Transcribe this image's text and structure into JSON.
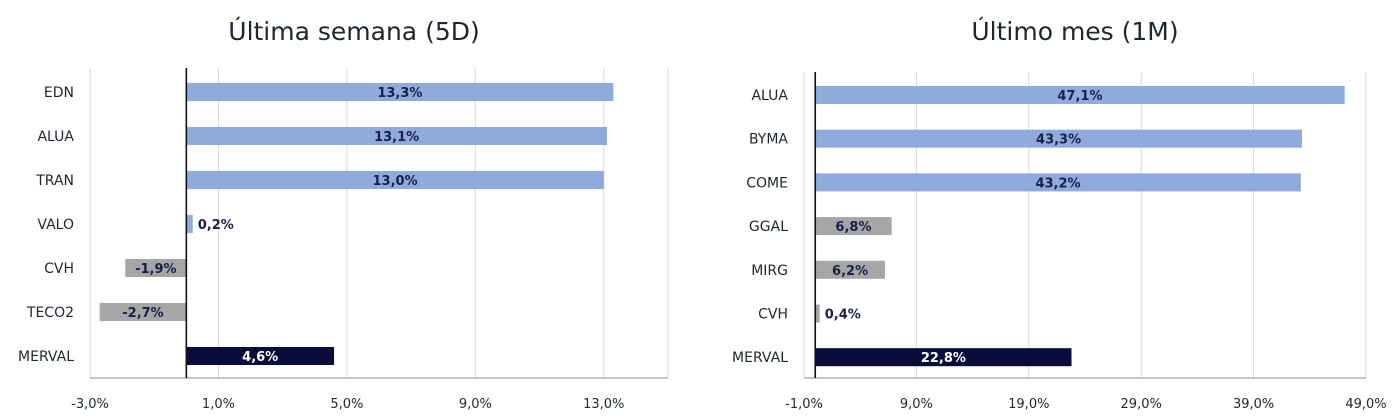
{
  "chart_data": [
    {
      "type": "bar",
      "orientation": "horizontal",
      "title": "Última semana (5D)",
      "categories": [
        "EDN",
        "ALUA",
        "TRAN",
        "VALO",
        "CVH",
        "TECO2",
        "MERVAL"
      ],
      "values": [
        13.3,
        13.1,
        13.0,
        0.2,
        -1.9,
        -2.7,
        4.6
      ],
      "data_labels": [
        "13,3%",
        "13,1%",
        "13,0%",
        "0,2%",
        "-1,9%",
        "-2,7%",
        "4,6%"
      ],
      "xlim": [
        -3.0,
        15.0
      ],
      "xticks": [
        -3.0,
        1.0,
        5.0,
        9.0,
        13.0
      ],
      "xtick_labels": [
        "-3,0%",
        "1,0%",
        "5,0%",
        "9,0%",
        "13,0%"
      ],
      "grid": true,
      "colors": {
        "positive": "#8faadc",
        "negative": "#a6a6a6",
        "index": "#0b0b3b",
        "label_dark": "#1a1f4a",
        "label_light": "#ffffff",
        "grid": "#d9d9d9"
      }
    },
    {
      "type": "bar",
      "orientation": "horizontal",
      "title": "Último mes (1M)",
      "categories": [
        "ALUA",
        "BYMA",
        "COME",
        "GGAL",
        "MIRG",
        "CVH",
        "MERVAL"
      ],
      "values": [
        47.1,
        43.3,
        43.2,
        6.8,
        6.2,
        0.4,
        22.8
      ],
      "data_labels": [
        "47,1%",
        "43,3%",
        "43,2%",
        "6,8%",
        "6,2%",
        "0,4%",
        "22,8%"
      ],
      "xlim": [
        -1.0,
        49.0
      ],
      "xticks": [
        -1.0,
        9.0,
        19.0,
        29.0,
        39.0,
        49.0
      ],
      "xtick_labels": [
        "-1,0%",
        "9,0%",
        "19,0%",
        "29,0%",
        "39,0%",
        "49,0%"
      ],
      "grid": true,
      "colors": {
        "positive": "#8faadc",
        "small": "#a6a6a6",
        "index": "#0b0b3b",
        "label_dark": "#1a1f4a",
        "label_light": "#ffffff",
        "grid": "#d9d9d9"
      }
    }
  ]
}
